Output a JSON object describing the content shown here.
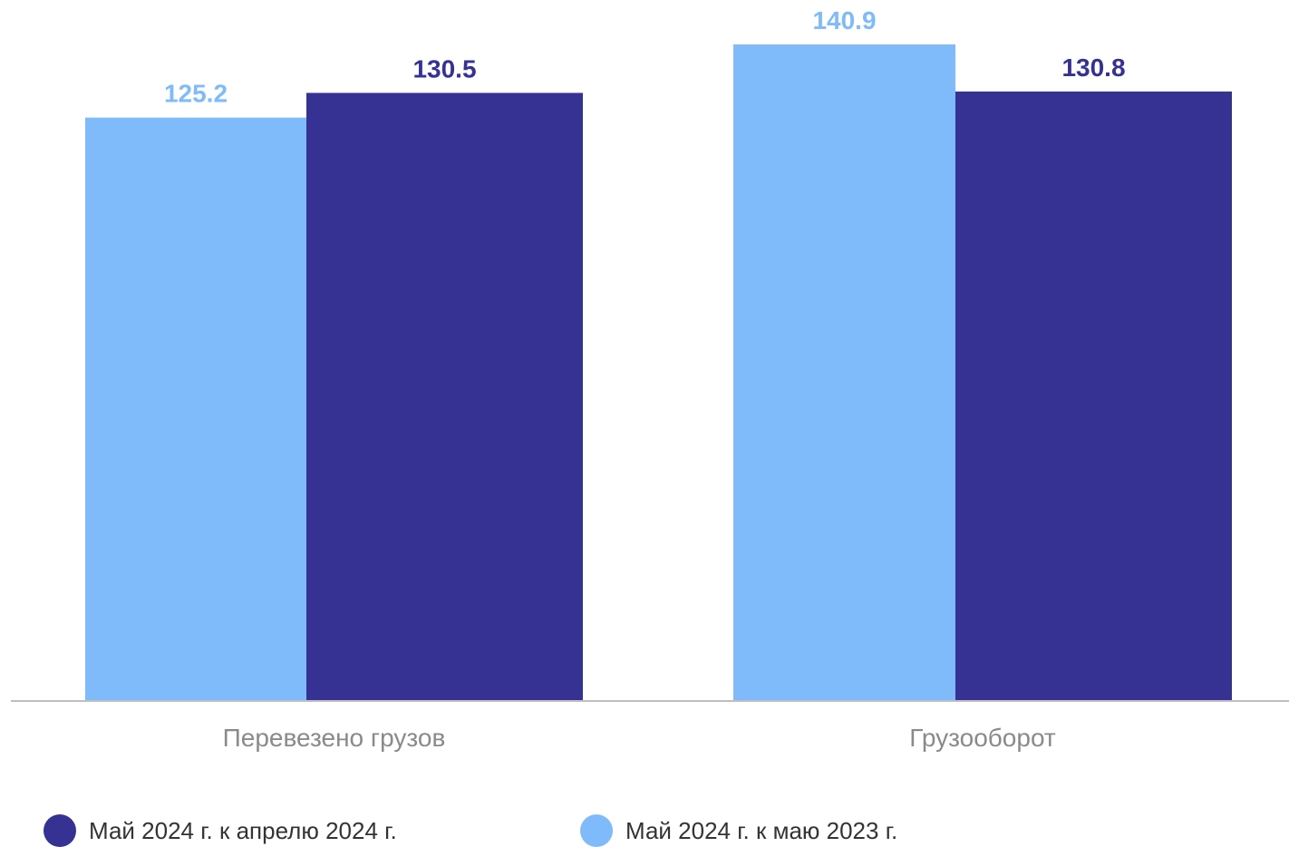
{
  "chart_data": {
    "type": "bar",
    "categories": [
      "Перевезено грузов",
      "Грузооборот"
    ],
    "series": [
      {
        "name": "Май 2024 г. к маю 2023 г.",
        "values": [
          125.2,
          140.9
        ],
        "color": "#7fbbfb"
      },
      {
        "name": "Май 2024 г. к апрелю 2024 г.",
        "values": [
          130.5,
          130.8
        ],
        "color": "#353294"
      }
    ],
    "title": "",
    "xlabel": "",
    "ylabel": "",
    "ylim": [
      0,
      144
    ],
    "grid": false,
    "legend_position": "bottom",
    "legend_order": [
      "Май 2024 г. к апрелю 2024 г.",
      "Май 2024 г. к маю 2023 г."
    ]
  }
}
